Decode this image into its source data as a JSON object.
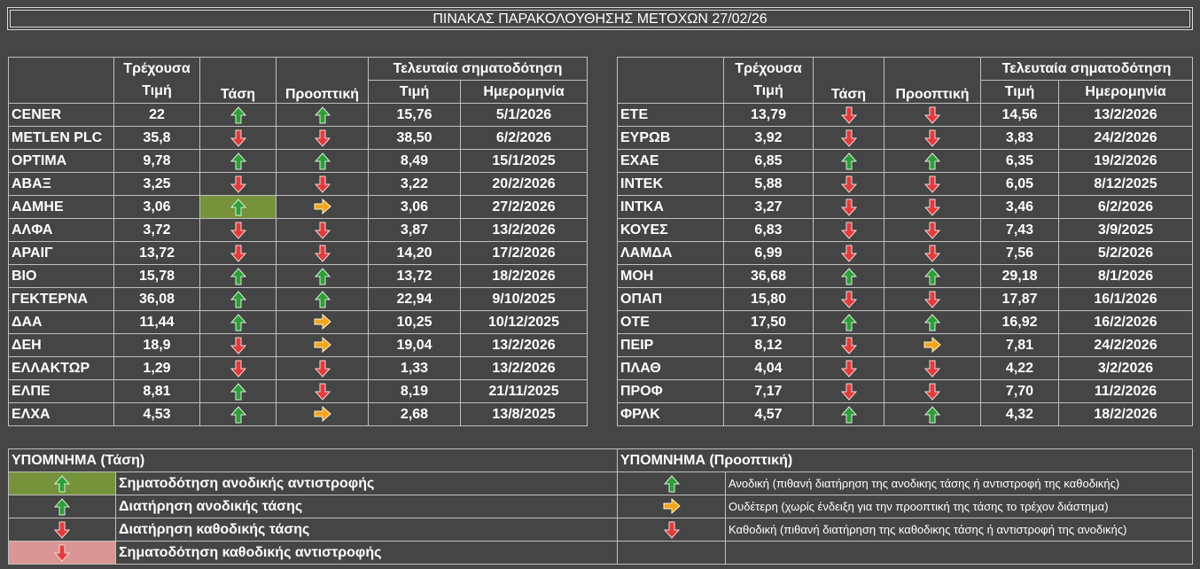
{
  "title": "ΠΙΝΑΚΑΣ ΠΑΡΑΚΟΛΟΥΘΗΣΗΣ ΜΕΤΟΧΩΝ 27/02/26",
  "colors": {
    "up": "#2f9e3a",
    "down": "#e03c3c",
    "neutral": "#f2a51f",
    "bg": "#454545",
    "hl_green": "#76933c",
    "hl_red": "#da9694"
  },
  "headers": {
    "price1": "Τρέχουσα",
    "price2": "Τιμή",
    "trend": "Τάση",
    "outlook": "Προοπτική",
    "signal": "Τελευταία σηματοδότηση",
    "sig_price": "Τιμή",
    "sig_date": "Ημερομηνία"
  },
  "left_rows": [
    {
      "name": "CENER",
      "price": "22",
      "trend": "up",
      "outlook": "up",
      "sig_price": "15,76",
      "sig_date": "5/1/2026"
    },
    {
      "name": "METLEN PLC",
      "price": "35,8",
      "trend": "down",
      "outlook": "down",
      "sig_price": "38,50",
      "sig_date": "6/2/2026"
    },
    {
      "name": "ΟΡΤΙΜΑ",
      "price": "9,78",
      "trend": "up",
      "outlook": "up",
      "sig_price": "8,49",
      "sig_date": "15/1/2025"
    },
    {
      "name": "ΑΒΑΞ",
      "price": "3,25",
      "trend": "down",
      "outlook": "down",
      "sig_price": "3,22",
      "sig_date": "20/2/2026"
    },
    {
      "name": "ΑΔΜΗΕ",
      "price": "3,06",
      "trend": "up",
      "trend_highlight": "green",
      "outlook": "neutral",
      "sig_price": "3,06",
      "sig_date": "27/2/2026"
    },
    {
      "name": "ΑΛΦΑ",
      "price": "3,72",
      "trend": "down",
      "outlook": "down",
      "sig_price": "3,87",
      "sig_date": "13/2/2026"
    },
    {
      "name": "ΑΡΑΙΓ",
      "price": "13,72",
      "trend": "down",
      "outlook": "down",
      "sig_price": "14,20",
      "sig_date": "17/2/2026"
    },
    {
      "name": "ΒΙΟ",
      "price": "15,78",
      "trend": "up",
      "outlook": "up",
      "sig_price": "13,72",
      "sig_date": "18/2/2026"
    },
    {
      "name": "ΓΕΚΤΕΡΝΑ",
      "price": "36,08",
      "trend": "up",
      "outlook": "up",
      "sig_price": "22,94",
      "sig_date": "9/10/2025"
    },
    {
      "name": "ΔΑΑ",
      "price": "11,44",
      "trend": "up",
      "outlook": "neutral",
      "sig_price": "10,25",
      "sig_date": "10/12/2025"
    },
    {
      "name": "ΔΕΗ",
      "price": "18,9",
      "trend": "down",
      "outlook": "neutral",
      "sig_price": "19,04",
      "sig_date": "13/2/2026"
    },
    {
      "name": "ΕΛΛΑΚΤΩΡ",
      "price": "1,29",
      "trend": "down",
      "outlook": "down",
      "sig_price": "1,33",
      "sig_date": "13/2/2026"
    },
    {
      "name": "ΕΛΠΕ",
      "price": "8,81",
      "trend": "up",
      "outlook": "down",
      "sig_price": "8,19",
      "sig_date": "21/11/2025"
    },
    {
      "name": "ΕΛΧΑ",
      "price": "4,53",
      "trend": "up",
      "outlook": "neutral",
      "sig_price": "2,68",
      "sig_date": "13/8/2025"
    }
  ],
  "right_rows": [
    {
      "name": "ΕΤΕ",
      "price": "13,79",
      "trend": "down",
      "outlook": "down",
      "sig_price": "14,56",
      "sig_date": "13/2/2026"
    },
    {
      "name": "ΕΥΡΩΒ",
      "price": "3,92",
      "trend": "down",
      "outlook": "down",
      "sig_price": "3,83",
      "sig_date": "24/2/2026"
    },
    {
      "name": "ΕΧΑΕ",
      "price": "6,85",
      "trend": "up",
      "outlook": "up",
      "sig_price": "6,35",
      "sig_date": "19/2/2026"
    },
    {
      "name": "ΙΝΤΕΚ",
      "price": "5,88",
      "trend": "down",
      "outlook": "down",
      "sig_price": "6,05",
      "sig_date": "8/12/2025"
    },
    {
      "name": "ΙΝΤΚΑ",
      "price": "3,27",
      "trend": "down",
      "outlook": "down",
      "sig_price": "3,46",
      "sig_date": "6/2/2026"
    },
    {
      "name": "ΚΟΥΕΣ",
      "price": "6,83",
      "trend": "down",
      "outlook": "down",
      "sig_price": "7,43",
      "sig_date": "3/9/2025"
    },
    {
      "name": "ΛΑΜΔΑ",
      "price": "6,99",
      "trend": "down",
      "outlook": "down",
      "sig_price": "7,56",
      "sig_date": "5/2/2026"
    },
    {
      "name": "ΜΟΗ",
      "price": "36,68",
      "trend": "up",
      "outlook": "up",
      "sig_price": "29,18",
      "sig_date": "8/1/2026"
    },
    {
      "name": "ΟΠΑΠ",
      "price": "15,80",
      "trend": "down",
      "outlook": "down",
      "sig_price": "17,87",
      "sig_date": "16/1/2026"
    },
    {
      "name": "ΟΤΕ",
      "price": "17,50",
      "trend": "up",
      "outlook": "up",
      "sig_price": "16,92",
      "sig_date": "16/2/2026"
    },
    {
      "name": "ΠΕΙΡ",
      "price": "8,12",
      "trend": "down",
      "outlook": "neutral",
      "sig_price": "7,81",
      "sig_date": "24/2/2026"
    },
    {
      "name": "ΠΛΑΘ",
      "price": "4,04",
      "trend": "down",
      "outlook": "down",
      "sig_price": "4,22",
      "sig_date": "3/2/2026"
    },
    {
      "name": "ΠΡΟΦ",
      "price": "7,17",
      "trend": "down",
      "outlook": "down",
      "sig_price": "7,70",
      "sig_date": "11/2/2026"
    },
    {
      "name": "ΦΡΛΚ",
      "price": "4,57",
      "trend": "up",
      "outlook": "up",
      "sig_price": "4,32",
      "sig_date": "18/2/2026"
    }
  ],
  "legend_trend": {
    "title": "ΥΠΟΜΝΗΜΑ (Τάση)",
    "items": [
      {
        "icon": "up",
        "highlight": "green",
        "label": "Σηματοδότηση ανοδικής αντιστροφής"
      },
      {
        "icon": "up",
        "highlight": "",
        "label": "Διατήρηση ανοδικής τάσης"
      },
      {
        "icon": "down",
        "highlight": "",
        "label": "Διατήρηση καθοδικής τάσης"
      },
      {
        "icon": "down",
        "highlight": "red",
        "label": "Σηματοδότηση καθοδικής αντιστροφής"
      }
    ]
  },
  "legend_outlook": {
    "title": "ΥΠΟΜΝΗΜΑ (Προοπτική)",
    "items": [
      {
        "icon": "up",
        "label": "Ανοδική (πιθανή διατήρηση της ανοδικης τάσης ή αντιστροφή της καθοδικής)"
      },
      {
        "icon": "neutral",
        "label": "Ουδέτερη (χωρίς ένδειξη για την προοπτική της τάσης το τρέχον διάστημα)"
      },
      {
        "icon": "down",
        "label": "Καθοδική (πιθανή διατήρηση της καθοδικης τάσης ή αντιστροφή της ανοδικής)"
      },
      {
        "icon": "",
        "label": ""
      }
    ]
  }
}
